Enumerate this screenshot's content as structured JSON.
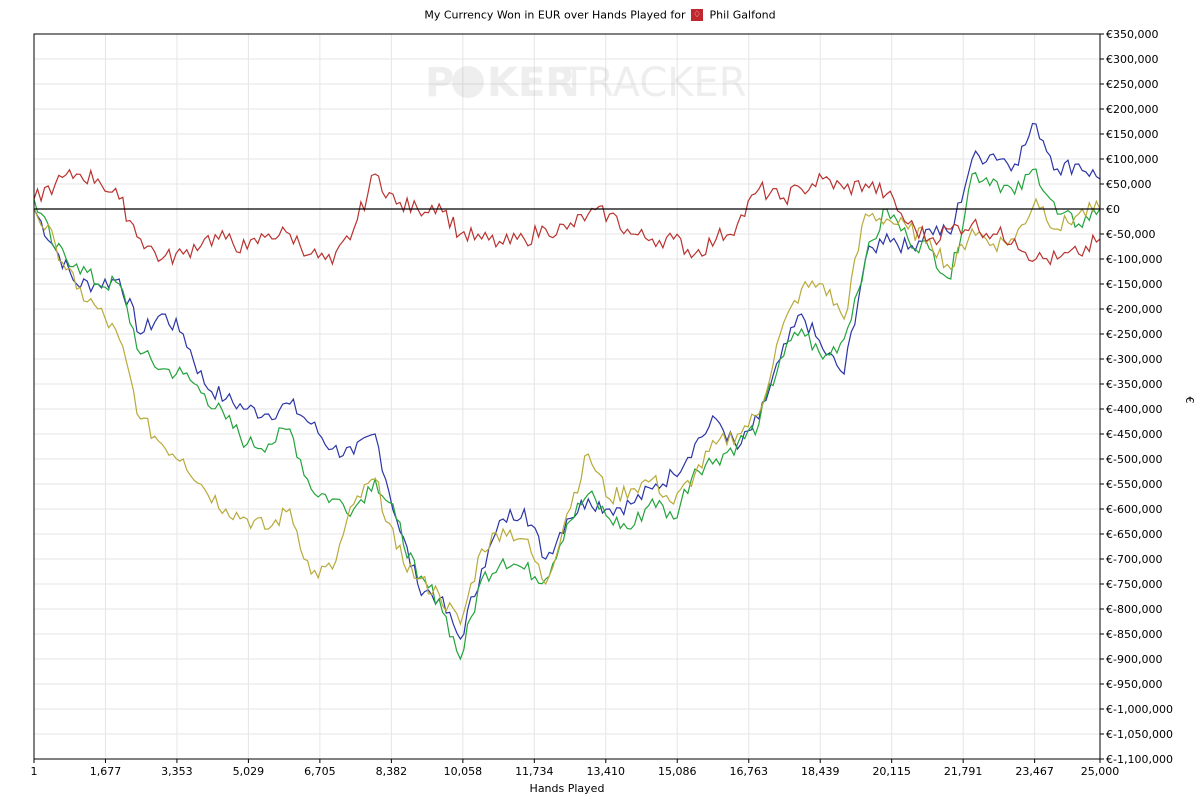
{
  "header": {
    "title_prefix": "My Currency Won in EUR over Hands Played for",
    "player_name": "Phil Galfond"
  },
  "watermark": {
    "text_left": "P",
    "text_mid": "KER",
    "text_right": "TRACKER"
  },
  "colors": {
    "blue": "#2b35a6",
    "green": "#22a43a",
    "yellow": "#b8aa3a",
    "red": "#b8322f",
    "zero_line": "#000000",
    "grid": "#e6e6e6",
    "player_icon": "#c0282d"
  },
  "chart_data": {
    "type": "line",
    "title": "My Currency Won in EUR over Hands Played for Phil Galfond",
    "xlabel": "Hands Played",
    "ylabel": "€",
    "xlim": [
      1,
      25000
    ],
    "ylim": [
      -1100000,
      350000
    ],
    "grid": true,
    "x_ticks": [
      1,
      1677,
      3353,
      5029,
      6705,
      8382,
      10058,
      11734,
      13410,
      15086,
      16763,
      18439,
      20115,
      21791,
      23467,
      25000
    ],
    "x_tick_labels": [
      "1",
      "1,677",
      "3,353",
      "5,029",
      "6,705",
      "8,382",
      "10,058",
      "11,734",
      "13,410",
      "15,086",
      "16,763",
      "18,439",
      "20,115",
      "21,791",
      "23,467",
      "25,000"
    ],
    "y_ticks": [
      350000,
      300000,
      250000,
      200000,
      150000,
      100000,
      50000,
      0,
      -50000,
      -100000,
      -150000,
      -200000,
      -250000,
      -300000,
      -350000,
      -400000,
      -450000,
      -500000,
      -550000,
      -600000,
      -650000,
      -700000,
      -750000,
      -800000,
      -850000,
      -900000,
      -950000,
      -1000000,
      -1050000,
      -1100000
    ],
    "y_tick_labels": [
      "€350,000",
      "€300,000",
      "€250,000",
      "€200,000",
      "€150,000",
      "€100,000",
      "€50,000",
      "€0",
      "€-50,000",
      "€-100,000",
      "€-150,000",
      "€-200,000",
      "€-250,000",
      "€-300,000",
      "€-350,000",
      "€-400,000",
      "€-450,000",
      "€-500,000",
      "€-550,000",
      "€-600,000",
      "€-650,000",
      "€-700,000",
      "€-750,000",
      "€-800,000",
      "€-850,000",
      "€-900,000",
      "€-950,000",
      "€-1,000,000",
      "€-1,050,000",
      "€-1,100,000"
    ],
    "x": [
      1,
      500,
      1000,
      1500,
      2000,
      2500,
      3000,
      3500,
      4000,
      4500,
      5000,
      5500,
      6000,
      6500,
      7000,
      7500,
      8000,
      8500,
      9000,
      9500,
      10000,
      10500,
      11000,
      11500,
      12000,
      12500,
      13000,
      13500,
      14000,
      14500,
      15000,
      15500,
      16000,
      16500,
      17000,
      17500,
      18000,
      18500,
      19000,
      19500,
      20000,
      20500,
      21000,
      21500,
      22000,
      22500,
      23000,
      23500,
      24000,
      24500,
      25000
    ],
    "series": [
      {
        "color_key": "blue",
        "values": [
          0,
          -80000,
          -150000,
          -150000,
          -140000,
          -250000,
          -210000,
          -250000,
          -350000,
          -380000,
          -400000,
          -410000,
          -390000,
          -430000,
          -480000,
          -490000,
          -450000,
          -620000,
          -750000,
          -780000,
          -860000,
          -720000,
          -620000,
          -600000,
          -700000,
          -620000,
          -580000,
          -600000,
          -590000,
          -560000,
          -530000,
          -470000,
          -420000,
          -480000,
          -420000,
          -300000,
          -210000,
          -280000,
          -330000,
          -100000,
          -50000,
          -80000,
          -40000,
          -50000,
          100000,
          110000,
          90000,
          170000,
          80000,
          90000,
          60000
        ]
      },
      {
        "color_key": "green",
        "values": [
          20000,
          -80000,
          -110000,
          -150000,
          -150000,
          -290000,
          -320000,
          -330000,
          -370000,
          -420000,
          -470000,
          -470000,
          -440000,
          -560000,
          -580000,
          -600000,
          -540000,
          -620000,
          -740000,
          -780000,
          -900000,
          -740000,
          -700000,
          -720000,
          -740000,
          -630000,
          -570000,
          -620000,
          -640000,
          -580000,
          -620000,
          -520000,
          -500000,
          -470000,
          -430000,
          -300000,
          -240000,
          -300000,
          -260000,
          -100000,
          0,
          -60000,
          -80000,
          -140000,
          70000,
          60000,
          30000,
          80000,
          -10000,
          -30000,
          0
        ]
      },
      {
        "color_key": "yellow",
        "values": [
          0,
          -70000,
          -160000,
          -200000,
          -260000,
          -420000,
          -470000,
          -500000,
          -560000,
          -600000,
          -620000,
          -640000,
          -600000,
          -730000,
          -720000,
          -590000,
          -540000,
          -680000,
          -740000,
          -770000,
          -830000,
          -680000,
          -640000,
          -660000,
          -750000,
          -610000,
          -490000,
          -580000,
          -560000,
          -540000,
          -590000,
          -530000,
          -470000,
          -450000,
          -410000,
          -250000,
          -160000,
          -150000,
          -220000,
          -10000,
          -20000,
          -40000,
          -60000,
          -120000,
          -40000,
          -70000,
          -60000,
          20000,
          -40000,
          -10000,
          0
        ]
      },
      {
        "color_key": "red",
        "values": [
          20000,
          50000,
          70000,
          60000,
          20000,
          -60000,
          -100000,
          -90000,
          -60000,
          -60000,
          -80000,
          -50000,
          -50000,
          -90000,
          -110000,
          -40000,
          70000,
          10000,
          0,
          10000,
          -50000,
          -60000,
          -70000,
          -60000,
          -40000,
          -40000,
          -10000,
          -10000,
          -50000,
          -60000,
          -60000,
          -90000,
          -60000,
          -30000,
          40000,
          20000,
          40000,
          60000,
          40000,
          50000,
          30000,
          -30000,
          -60000,
          -40000,
          -30000,
          -50000,
          -60000,
          -100000,
          -100000,
          -90000,
          -60000
        ]
      }
    ]
  }
}
